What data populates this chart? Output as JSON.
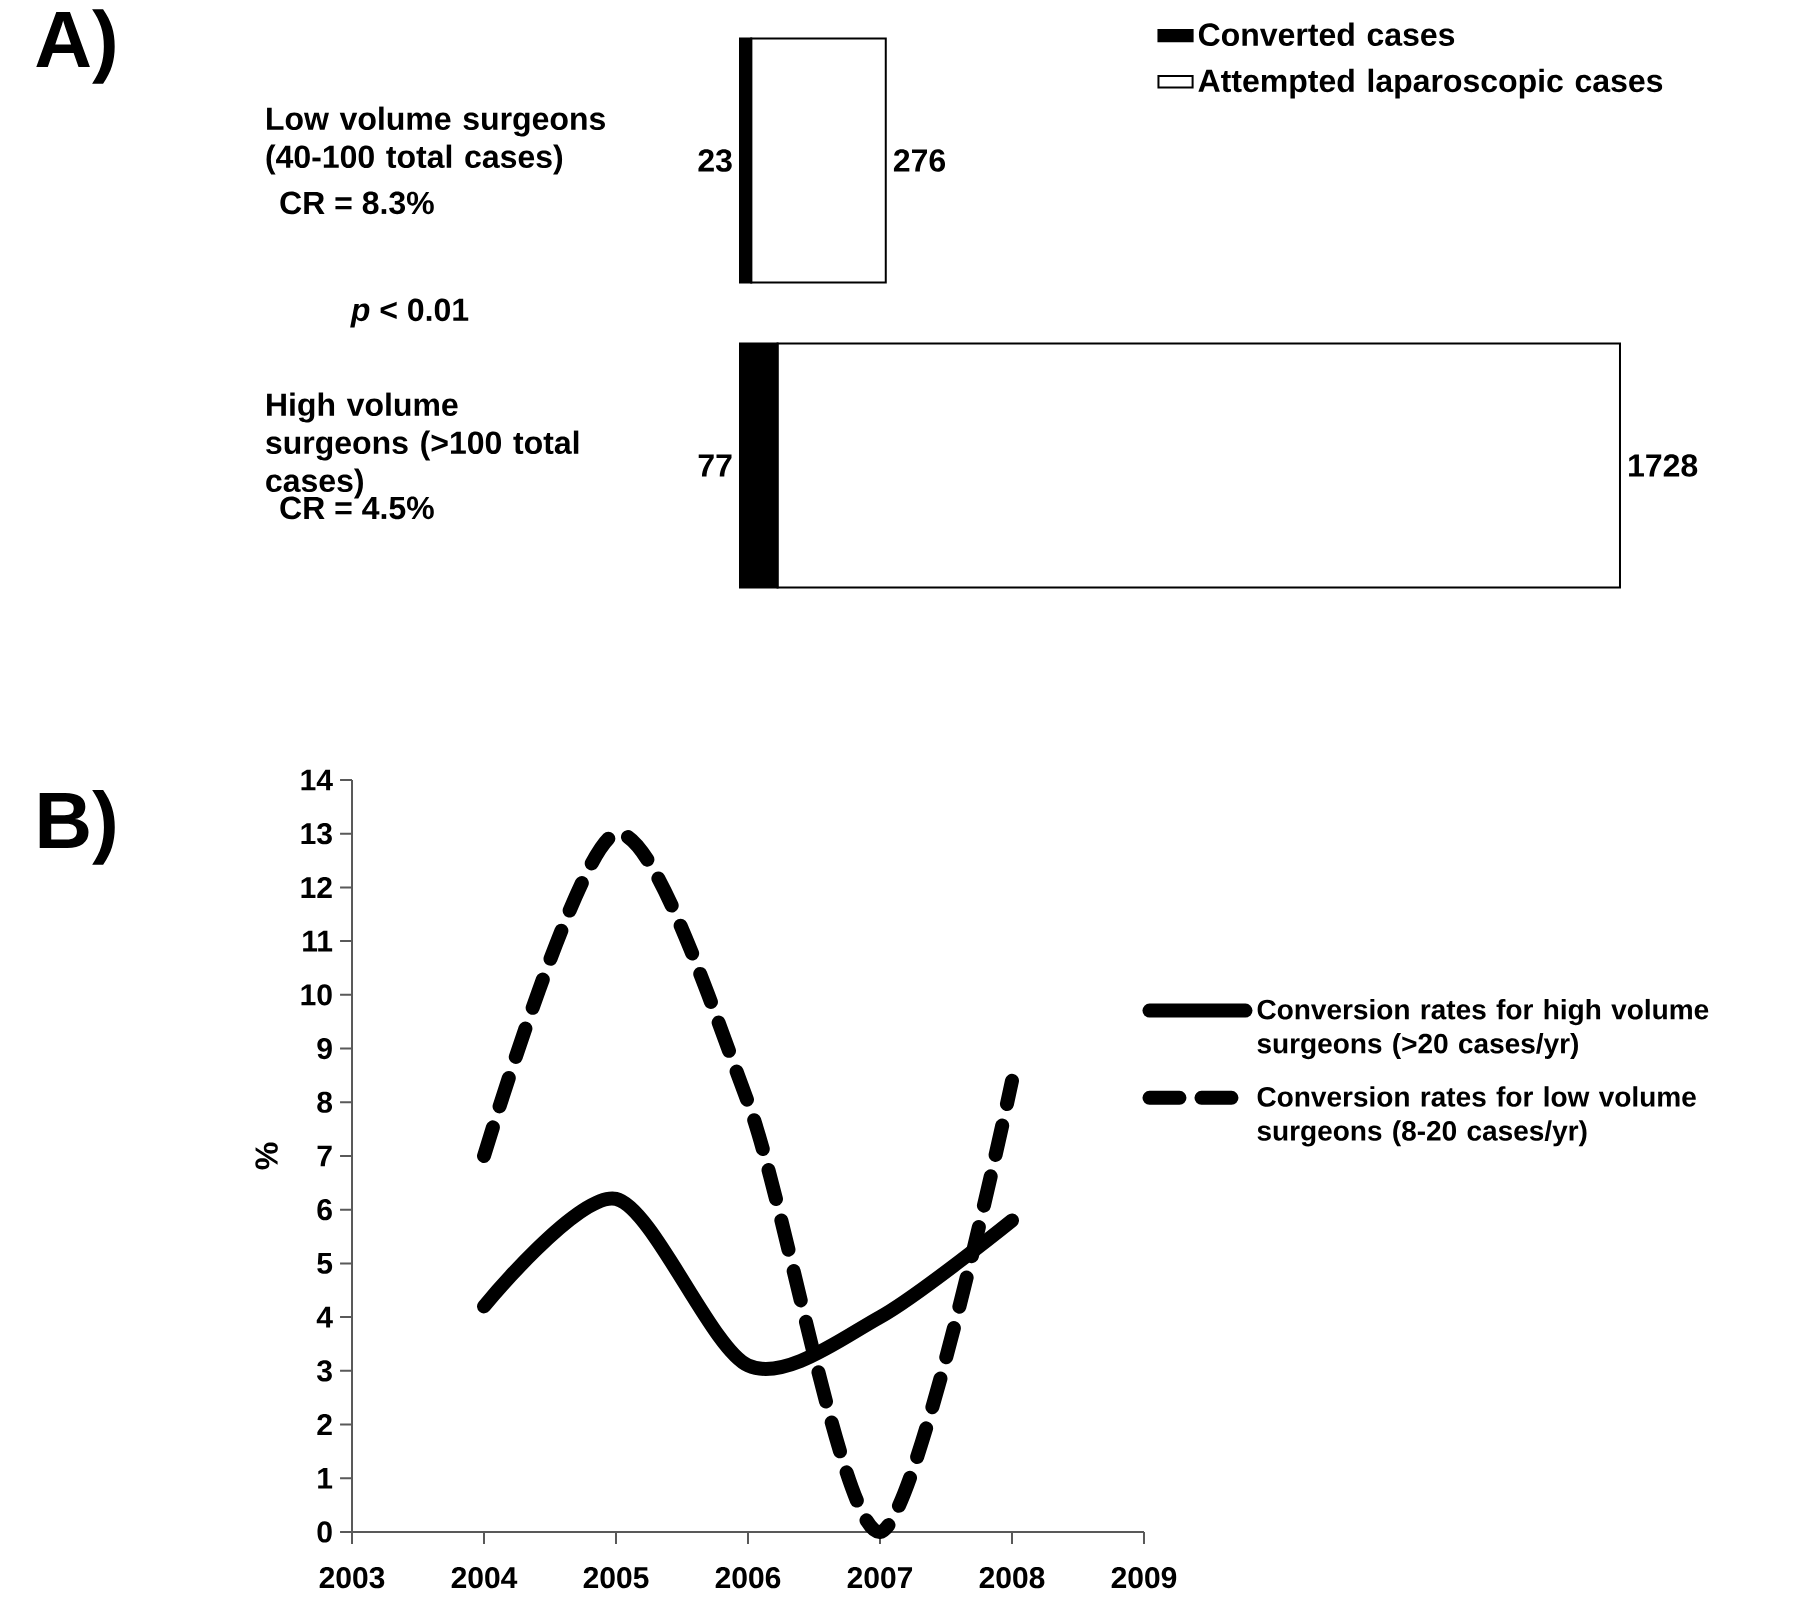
{
  "chart_data": [
    {
      "type": "bar",
      "title": "A)",
      "orientation": "horizontal",
      "stacked": true,
      "categories": [
        "Low volume surgeons (40-100 total cases)",
        "High volume surgeons (>100 total cases)"
      ],
      "series": [
        {
          "name": "Converted cases",
          "color": "#000000",
          "values": [
            23,
            77
          ]
        },
        {
          "name": "Attempted laparoscopic cases",
          "color": "#ffffff",
          "values": [
            276,
            1728
          ]
        }
      ],
      "data_labels": true,
      "legend": "top right",
      "annotations": [
        "CR = 8.3%",
        "*p* < 0.01",
        "CR = 4.5%"
      ]
    },
    {
      "type": "line",
      "title": "B)",
      "ylabel": "%",
      "x": [
        2004,
        2005,
        2006,
        2007,
        2008
      ],
      "xlim": [
        2003,
        2009
      ],
      "xticks": [
        2003,
        2004,
        2005,
        2006,
        2007,
        2008,
        2009
      ],
      "ylim": [
        0,
        14
      ],
      "yticks": [
        0,
        1,
        2,
        3,
        4,
        5,
        6,
        7,
        8,
        9,
        10,
        11,
        12,
        13,
        14
      ],
      "legend": "right",
      "marker": "none",
      "series": [
        {
          "name": "Conversion rates for high volume surgeons (>20 cases/yr)",
          "color": "#000000",
          "line_style": "solid",
          "values": [
            4.2,
            6.2,
            3.1,
            4.0,
            5.8
          ]
        },
        {
          "name": "Conversion rates for low volume surgeons (8-20 cases/yr)",
          "color": "#000000",
          "line_style": "dashed",
          "values": [
            7.0,
            13.0,
            8.0,
            0.0,
            8.4
          ]
        }
      ]
    }
  ]
}
